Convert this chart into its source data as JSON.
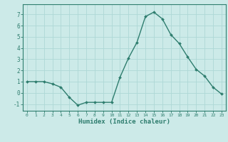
{
  "x": [
    0,
    1,
    2,
    3,
    4,
    5,
    6,
    7,
    8,
    9,
    10,
    11,
    12,
    13,
    14,
    15,
    16,
    17,
    18,
    19,
    20,
    21,
    22,
    23
  ],
  "y": [
    1.0,
    1.0,
    1.0,
    0.8,
    0.5,
    -0.4,
    -1.1,
    -0.85,
    -0.85,
    -0.85,
    -0.85,
    1.4,
    3.1,
    4.5,
    6.8,
    7.2,
    6.6,
    5.2,
    4.4,
    3.2,
    2.1,
    1.5,
    0.5,
    -0.1
  ],
  "line_color": "#2e7d6e",
  "marker": "D",
  "marker_size": 2.0,
  "linewidth": 1.0,
  "bg_color": "#cceae8",
  "grid_color": "#aed8d6",
  "tick_color": "#2e7d6e",
  "xlabel": "Humidex (Indice chaleur)",
  "xlabel_fontsize": 6.5,
  "ylabel_ticks": [
    -1,
    0,
    1,
    2,
    3,
    4,
    5,
    6,
    7
  ],
  "xlim": [
    -0.5,
    23.5
  ],
  "ylim": [
    -1.6,
    7.9
  ],
  "xticks": [
    0,
    1,
    2,
    3,
    4,
    5,
    6,
    7,
    8,
    9,
    10,
    11,
    12,
    13,
    14,
    15,
    16,
    17,
    18,
    19,
    20,
    21,
    22,
    23
  ]
}
